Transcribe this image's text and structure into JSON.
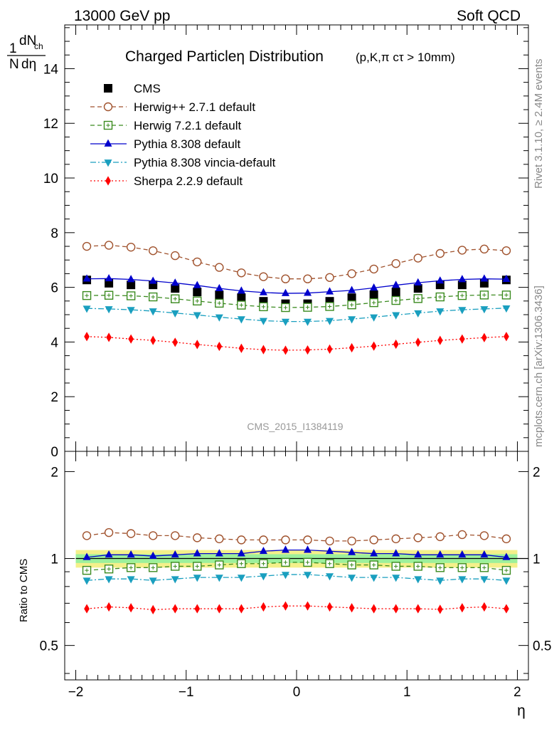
{
  "header": {
    "energy_label": "13000 GeV pp",
    "process_label": "Soft QCD"
  },
  "side_labels": {
    "rivet": "Rivet 3.1.10, ≥ 2.4M events",
    "site": "mcplots.cern.ch [arXiv:1306.3436]"
  },
  "chart_data": [
    {
      "type": "scatter",
      "panel": "main",
      "title": "Charged Particleη Distribution",
      "title_suffix": "(p,K,π cτ > 10mm)",
      "ylabel_numerator": "1",
      "ylabel_denominator": "N",
      "ylabel_dn": "dN",
      "ylabel_sub": "ch",
      "ylabel_deta": "dη",
      "watermark": "CMS_2015_I1384119",
      "xlim": [
        -2.1,
        2.1
      ],
      "ylim": [
        0,
        15.6
      ],
      "yticks": [
        0,
        2,
        4,
        6,
        8,
        10,
        12,
        14
      ],
      "ytick_labels": [
        "0",
        "2",
        "4",
        "6",
        "8",
        "10",
        "12",
        "14"
      ],
      "x": [
        -1.9,
        -1.7,
        -1.5,
        -1.3,
        -1.1,
        -0.9,
        -0.7,
        -0.5,
        -0.3,
        -0.1,
        0.1,
        0.3,
        0.5,
        0.7,
        0.9,
        1.1,
        1.3,
        1.5,
        1.7,
        1.9
      ],
      "legend_position": "top-left",
      "series": [
        {
          "name": "CMS",
          "color": "#000000",
          "marker": "square-filled",
          "line": "none",
          "values": [
            6.27,
            6.15,
            6.09,
            6.09,
            5.96,
            5.83,
            5.73,
            5.62,
            5.49,
            5.4,
            5.4,
            5.49,
            5.62,
            5.73,
            5.83,
            5.96,
            6.09,
            6.09,
            6.15,
            6.27
          ]
        },
        {
          "name": "Herwig++ 2.7.1 default",
          "color": "#a0522d",
          "marker": "circle-open",
          "line": "dashed",
          "values": [
            7.5,
            7.54,
            7.47,
            7.34,
            7.16,
            6.93,
            6.73,
            6.53,
            6.39,
            6.31,
            6.31,
            6.36,
            6.5,
            6.67,
            6.87,
            7.07,
            7.24,
            7.36,
            7.4,
            7.34
          ]
        },
        {
          "name": "Herwig 7.2.1 default",
          "color": "#3a8a1e",
          "marker": "square-open-cross",
          "line": "dashed",
          "values": [
            5.7,
            5.71,
            5.69,
            5.65,
            5.58,
            5.5,
            5.42,
            5.35,
            5.29,
            5.26,
            5.27,
            5.3,
            5.36,
            5.44,
            5.52,
            5.59,
            5.65,
            5.7,
            5.72,
            5.72
          ]
        },
        {
          "name": "Pythia 8.308 default",
          "color": "#0000cc",
          "marker": "triangle-up",
          "line": "solid",
          "values": [
            6.31,
            6.32,
            6.29,
            6.23,
            6.16,
            6.07,
            5.96,
            5.87,
            5.81,
            5.78,
            5.79,
            5.84,
            5.89,
            5.98,
            6.08,
            6.17,
            6.24,
            6.29,
            6.31,
            6.3
          ]
        },
        {
          "name": "Pythia 8.308 vincia-default",
          "color": "#1a9fbf",
          "marker": "triangle-down",
          "line": "dashdot",
          "values": [
            5.23,
            5.21,
            5.18,
            5.13,
            5.06,
            4.99,
            4.91,
            4.84,
            4.78,
            4.75,
            4.75,
            4.78,
            4.84,
            4.91,
            4.99,
            5.06,
            5.13,
            5.18,
            5.21,
            5.24
          ]
        },
        {
          "name": "Sherpa 2.2.9 default",
          "color": "#ff0000",
          "marker": "diamond",
          "line": "dotted",
          "values": [
            4.2,
            4.17,
            4.11,
            4.06,
            3.99,
            3.91,
            3.84,
            3.77,
            3.72,
            3.7,
            3.71,
            3.74,
            3.79,
            3.85,
            3.92,
            3.99,
            4.06,
            4.11,
            4.16,
            4.2
          ]
        }
      ]
    },
    {
      "type": "scatter",
      "panel": "ratio",
      "ylabel": "Ratio to CMS",
      "xlabel": "η",
      "xlim": [
        -2.1,
        2.1
      ],
      "ylim": [
        0.38,
        2.35
      ],
      "yscale": "log",
      "yticks": [
        0.5,
        1,
        2
      ],
      "ytick_labels": [
        "0.5",
        "1",
        "2"
      ],
      "xticks": [
        -2,
        -1,
        0,
        1,
        2
      ],
      "xtick_labels": [
        "−2",
        "−1",
        "0",
        "1",
        "2"
      ],
      "band_outer": [
        0.93,
        1.07
      ],
      "band_inner": [
        0.965,
        1.035
      ],
      "x": [
        -1.9,
        -1.7,
        -1.5,
        -1.3,
        -1.1,
        -0.9,
        -0.7,
        -0.5,
        -0.3,
        -0.1,
        0.1,
        0.3,
        0.5,
        0.7,
        0.9,
        1.1,
        1.3,
        1.5,
        1.7,
        1.9
      ],
      "series": [
        {
          "name": "Herwig++ 2.7.1 default",
          "color": "#a0522d",
          "marker": "circle-open",
          "line": "dashed",
          "values": [
            1.2,
            1.23,
            1.22,
            1.2,
            1.2,
            1.18,
            1.17,
            1.16,
            1.16,
            1.16,
            1.16,
            1.15,
            1.15,
            1.16,
            1.17,
            1.18,
            1.19,
            1.21,
            1.2,
            1.17
          ]
        },
        {
          "name": "Herwig 7.2.1 default",
          "color": "#3a8a1e",
          "marker": "square-open-cross",
          "line": "dashed",
          "values": [
            0.91,
            0.92,
            0.93,
            0.93,
            0.94,
            0.94,
            0.95,
            0.96,
            0.96,
            0.97,
            0.97,
            0.96,
            0.95,
            0.95,
            0.94,
            0.94,
            0.93,
            0.93,
            0.93,
            0.91
          ]
        },
        {
          "name": "Pythia 8.308 default",
          "color": "#0000cc",
          "marker": "triangle-up",
          "line": "solid",
          "values": [
            1.01,
            1.03,
            1.03,
            1.02,
            1.03,
            1.04,
            1.04,
            1.04,
            1.06,
            1.07,
            1.07,
            1.06,
            1.05,
            1.04,
            1.04,
            1.03,
            1.03,
            1.03,
            1.03,
            1.01
          ]
        },
        {
          "name": "Pythia 8.308 vincia-default",
          "color": "#1a9fbf",
          "marker": "triangle-down",
          "line": "dashdot",
          "values": [
            0.84,
            0.85,
            0.85,
            0.84,
            0.85,
            0.86,
            0.86,
            0.86,
            0.87,
            0.88,
            0.88,
            0.87,
            0.86,
            0.86,
            0.86,
            0.85,
            0.84,
            0.85,
            0.85,
            0.84
          ]
        },
        {
          "name": "Sherpa 2.2.9 default",
          "color": "#ff0000",
          "marker": "diamond",
          "line": "dotted",
          "values": [
            0.67,
            0.68,
            0.675,
            0.665,
            0.67,
            0.67,
            0.67,
            0.67,
            0.68,
            0.685,
            0.685,
            0.68,
            0.675,
            0.67,
            0.67,
            0.67,
            0.667,
            0.675,
            0.68,
            0.67
          ]
        }
      ]
    }
  ]
}
